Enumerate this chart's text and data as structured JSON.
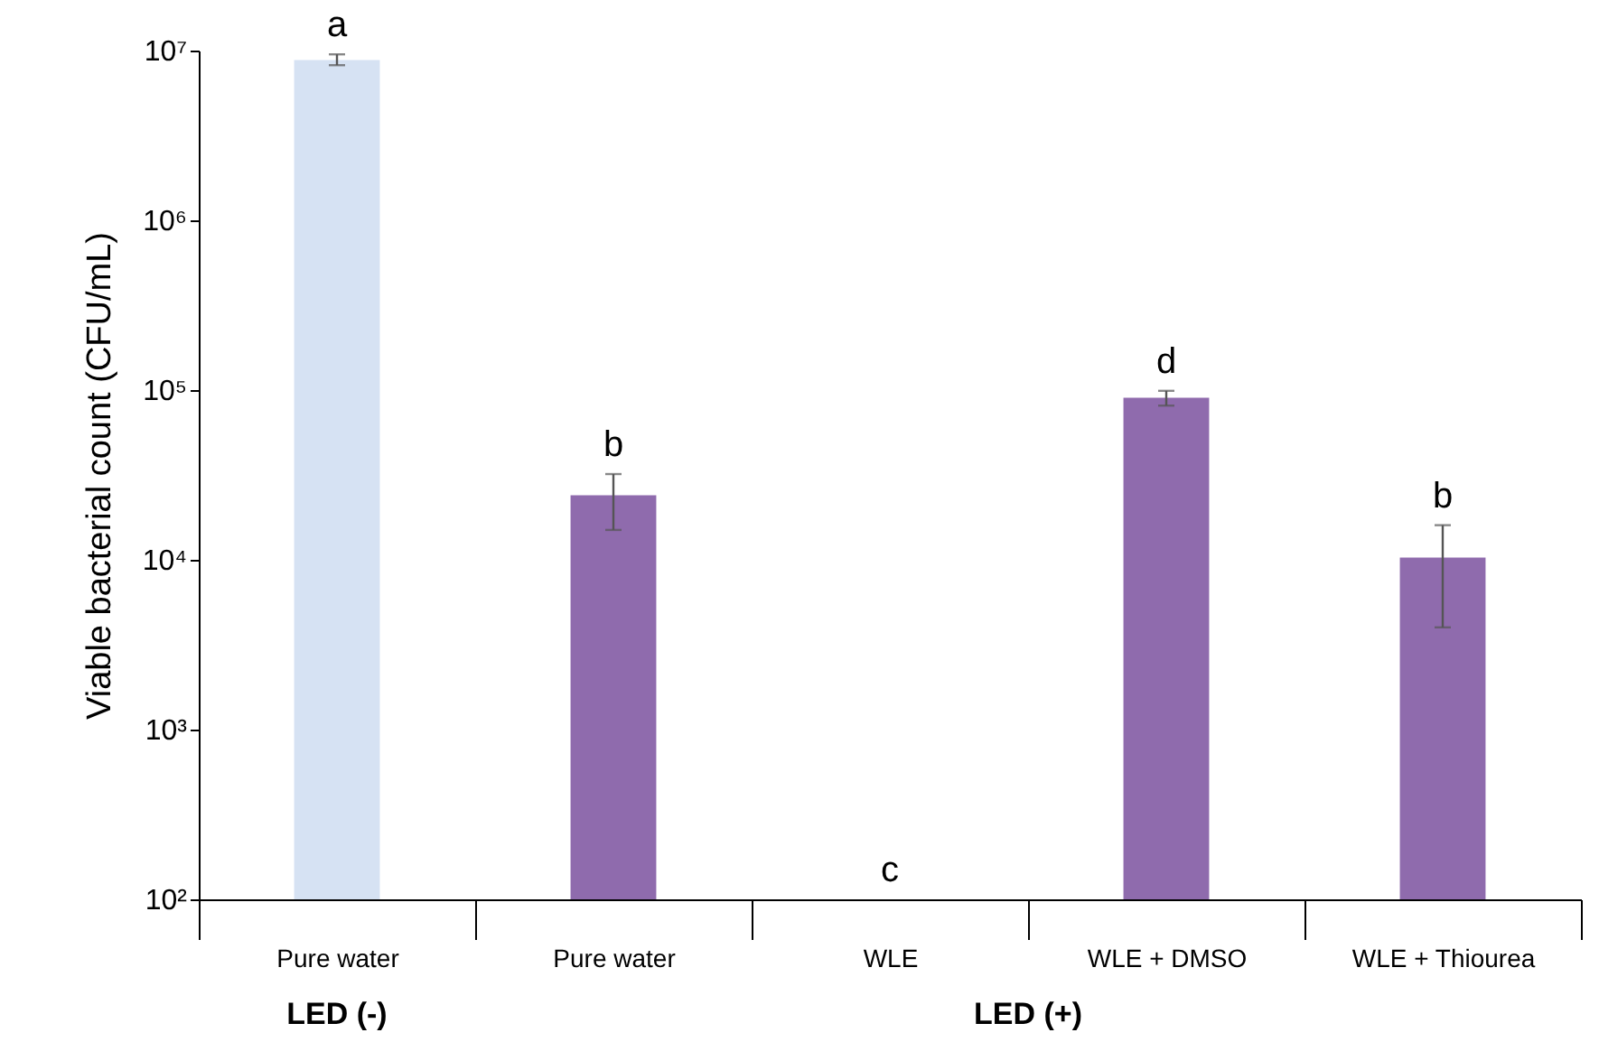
{
  "chart_data": {
    "type": "bar",
    "ylabel": "Viable bacterial count (CFU/mL)",
    "categories": [
      "Pure water",
      "Pure water",
      "WLE",
      "WLE +  DMSO",
      "WLE + Thiourea"
    ],
    "values": [
      8800000,
      24000,
      100,
      90000,
      10300
    ],
    "colors": [
      "#d6e2f3",
      "#8f6bad",
      "#8f6bad",
      "#8f6bad",
      "#8f6bad"
    ],
    "errors": [
      [
        8200000,
        9500000
      ],
      [
        15000,
        32000
      ],
      null,
      [
        81000,
        99000
      ],
      [
        4000,
        16000
      ]
    ],
    "value_labels": [
      "a",
      "b",
      "c",
      "d",
      "b"
    ],
    "log": true,
    "ylim": [
      100,
      10000000
    ],
    "yticks": [
      {
        "value": 100,
        "label": "10²"
      },
      {
        "value": 1000,
        "label": "10³"
      },
      {
        "value": 10000,
        "label": "10⁴"
      },
      {
        "value": 100000,
        "label": "10⁵"
      },
      {
        "value": 1000000,
        "label": "10⁶"
      },
      {
        "value": 10000000,
        "label": "10⁷"
      }
    ],
    "grid": false,
    "annotations": [
      "LED (-)",
      "LED (+)"
    ]
  }
}
